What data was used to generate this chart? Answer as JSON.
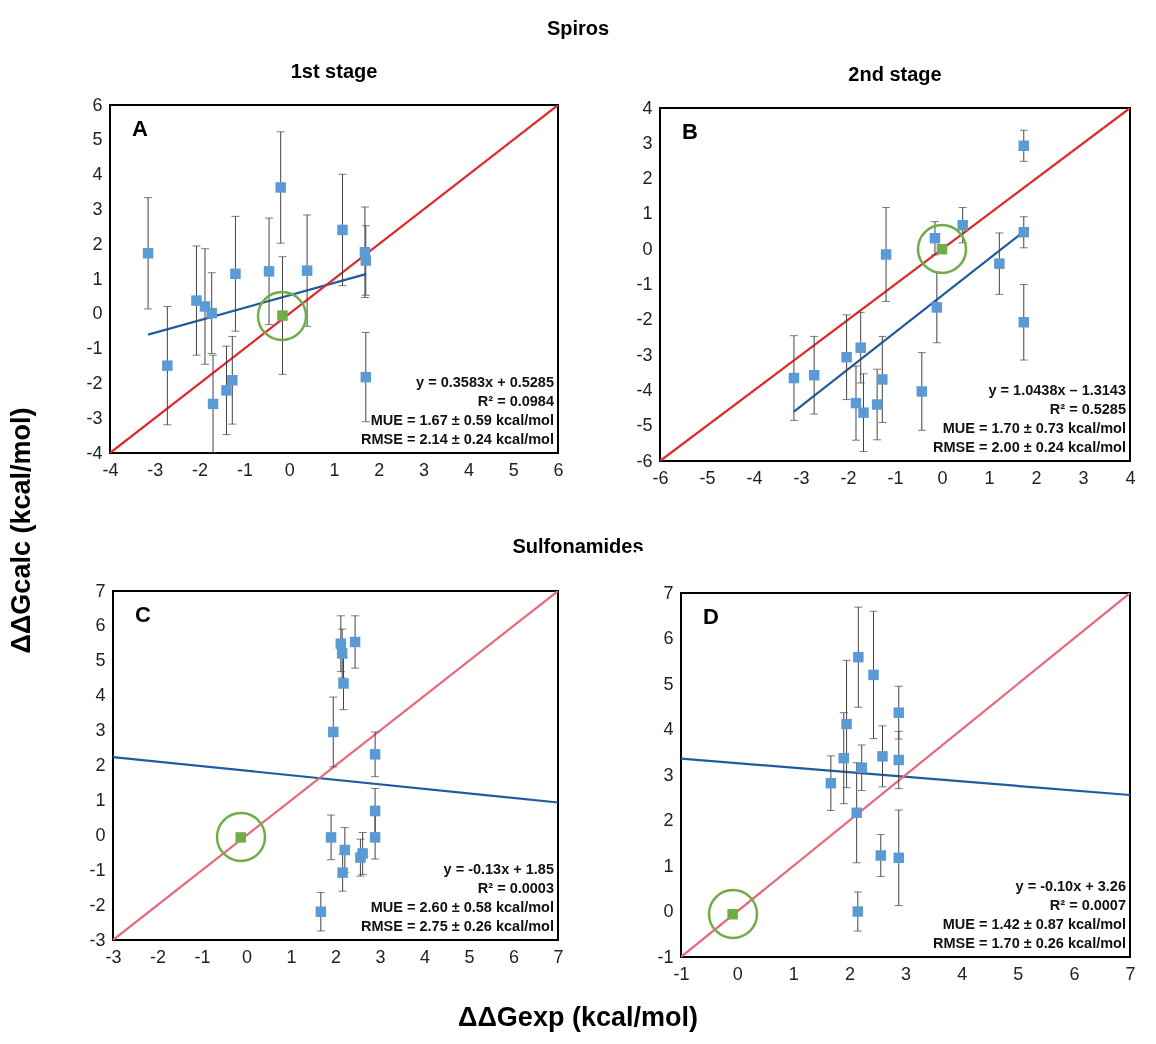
{
  "chart_data": [
    {
      "type": "scatter",
      "title": "Spiros",
      "subtitle": "1st stage",
      "ylabel": "ΔΔGcalc (kcal/mol)",
      "xlim": [
        -4,
        6
      ],
      "ylim": [
        -4,
        6
      ],
      "xticks": [
        -4,
        -3,
        -2,
        -1,
        0,
        1,
        2,
        3,
        4,
        5,
        6
      ],
      "yticks": [
        -4,
        -3,
        -2,
        -1,
        0,
        1,
        2,
        3,
        4,
        5,
        6
      ],
      "annotations": [
        "A",
        "y = 0.3583x + 0.5285",
        "R² = 0.0984",
        "MUE = 1.67 ± 0.59 kcal/mol",
        "RMSE = 2.14 ± 0.24 kcal/mol"
      ],
      "series": [
        {
          "type": "scatter",
          "marker": "square",
          "color": "#5b9bd5",
          "x": [
            -3.15,
            -2.72,
            -2.07,
            -1.88,
            -1.73,
            -1.7,
            -1.4,
            -1.27,
            -1.2,
            -0.45,
            -0.19,
            0.4,
            1.19,
            1.69,
            1.71,
            1.71
          ],
          "values": [
            1.74,
            -1.49,
            0.38,
            0.21,
            0.02,
            -2.59,
            -2.2,
            -1.91,
            1.15,
            1.22,
            3.63,
            1.24,
            2.41,
            1.77,
            1.53,
            -1.82
          ],
          "errors": [
            1.6,
            1.7,
            1.57,
            1.66,
            1.16,
            1.4,
            1.27,
            1.26,
            1.65,
            1.53,
            1.6,
            1.6,
            1.6,
            1.3,
            1.0,
            1.28
          ]
        },
        {
          "type": "scatter",
          "marker": "square",
          "color": "#70ad47",
          "x": [
            -0.15
          ],
          "values": [
            -0.05
          ],
          "errors": [
            1.69
          ]
        },
        {
          "type": "line",
          "color": "#1f5c9e",
          "x": [
            -3.15,
            1.71
          ],
          "values": [
            -0.6,
            1.14
          ]
        },
        {
          "type": "line",
          "color": "#e0262a",
          "x": [
            -4,
            6
          ],
          "values": [
            -4,
            6
          ]
        }
      ]
    },
    {
      "type": "scatter",
      "subtitle": "2nd stage",
      "xlim": [
        -6,
        4
      ],
      "ylim": [
        -6,
        4
      ],
      "xticks": [
        -6,
        -5,
        -4,
        -3,
        -2,
        -1,
        0,
        1,
        2,
        3,
        4
      ],
      "yticks": [
        -6,
        -5,
        -4,
        -3,
        -2,
        -1,
        0,
        1,
        2,
        3,
        4
      ],
      "annotations": [
        "B",
        "y = 1.0438x – 1.3143",
        "R² = 0.5285",
        "MUE = 1.70 ± 0.73 kcal/mol",
        "RMSE = 2.00 ± 0.24 kcal/mol"
      ],
      "series": [
        {
          "type": "scatter",
          "marker": "square",
          "color": "#5b9bd5",
          "x": [
            -3.15,
            -2.72,
            -2.03,
            -1.73,
            -1.83,
            -1.67,
            -1.38,
            -1.27,
            -1.19,
            -0.43,
            -0.15,
            -0.11,
            0.44,
            1.22,
            1.74,
            1.74,
            1.74
          ],
          "values": [
            -3.65,
            -3.57,
            -3.06,
            -2.79,
            -4.36,
            -4.63,
            -4.4,
            -3.69,
            -0.15,
            -4.03,
            0.31,
            -1.65,
            0.68,
            -0.41,
            2.93,
            0.48,
            -2.07
          ],
          "errors": [
            1.2,
            1.1,
            1.2,
            1.0,
            1.05,
            1.1,
            1.0,
            1.22,
            1.33,
            1.1,
            0.47,
            1.0,
            0.5,
            0.87,
            0.44,
            0.44,
            1.07
          ]
        },
        {
          "type": "scatter",
          "marker": "square",
          "color": "#70ad47",
          "x": [
            0
          ],
          "values": [
            0
          ]
        },
        {
          "type": "line",
          "color": "#1f5c9e",
          "x": [
            -3.15,
            1.74
          ],
          "values": [
            -4.6,
            0.5
          ]
        },
        {
          "type": "line",
          "color": "#e0262a",
          "x": [
            -6,
            4
          ],
          "values": [
            -6,
            4
          ]
        }
      ]
    },
    {
      "type": "scatter",
      "title": "Sulfonamides",
      "xlabel": "ΔΔGexp (kcal/mol)",
      "xlim": [
        -3,
        7
      ],
      "ylim": [
        -3,
        7
      ],
      "xticks": [
        -3,
        -2,
        -1,
        0,
        1,
        2,
        3,
        4,
        5,
        6,
        7
      ],
      "yticks": [
        -3,
        -2,
        -1,
        0,
        1,
        2,
        3,
        4,
        5,
        6,
        7
      ],
      "annotations": [
        "C",
        "y = -0.13x + 1.85",
        "R² = 0.0003",
        "MUE = 2.60 ± 0.58 kcal/mol",
        "RMSE = 2.75 ± 0.26 kcal/mol"
      ],
      "series": [
        {
          "type": "scatter",
          "marker": "square",
          "color": "#5b9bd5",
          "x": [
            1.67,
            1.9,
            1.95,
            2.12,
            2.15,
            2.18,
            2.16,
            2.21,
            2.44,
            2.56,
            2.61,
            2.89,
            2.89,
            2.89
          ],
          "values": [
            -2.19,
            -0.06,
            2.96,
            5.49,
            5.21,
            4.35,
            -1.07,
            -0.42,
            5.54,
            -0.64,
            -0.52,
            2.32,
            0.7,
            -0.06
          ],
          "errors": [
            0.55,
            0.64,
            1.0,
            0.8,
            0.7,
            0.75,
            0.53,
            0.64,
            0.75,
            0.53,
            0.6,
            0.64,
            0.64,
            0.62
          ]
        },
        {
          "type": "scatter",
          "marker": "square",
          "color": "#70ad47",
          "x": [
            -0.13
          ],
          "values": [
            -0.06
          ]
        },
        {
          "type": "line",
          "color": "#1f5c9e",
          "x": [
            -3,
            7
          ],
          "values": [
            2.24,
            0.94
          ]
        },
        {
          "type": "line",
          "color": "#e8687a",
          "x": [
            -3,
            7
          ],
          "values": [
            -3,
            7
          ]
        }
      ]
    },
    {
      "type": "scatter",
      "xlim": [
        -1,
        7
      ],
      "ylim": [
        -1,
        7
      ],
      "xticks": [
        -1,
        0,
        1,
        2,
        3,
        4,
        5,
        6,
        7
      ],
      "yticks": [
        -1,
        0,
        1,
        2,
        3,
        4,
        5,
        6,
        7
      ],
      "annotations": [
        "D",
        "y = -0.10x + 3.26",
        "R² = 0.0007",
        "MUE = 1.42 ± 0.87 kcal/mol",
        "RMSE = 1.70 ± 0.26 kcal/mol"
      ],
      "series": [
        {
          "type": "scatter",
          "marker": "square",
          "color": "#5b9bd5",
          "x": [
            1.67,
            1.9,
            1.95,
            2.16,
            2.13,
            2.15,
            2.22,
            2.43,
            2.59,
            2.56,
            2.88,
            2.88,
            2.88
          ],
          "values": [
            2.82,
            3.37,
            4.12,
            5.59,
            2.17,
            0.0,
            3.16,
            5.2,
            3.41,
            1.23,
            4.37,
            3.33,
            1.18
          ],
          "errors": [
            0.6,
            1.0,
            1.4,
            1.1,
            1.1,
            0.43,
            0.5,
            1.4,
            0.67,
            0.46,
            0.58,
            0.63,
            1.05
          ]
        },
        {
          "type": "scatter",
          "marker": "square",
          "color": "#70ad47",
          "x": [
            -0.08
          ],
          "values": [
            -0.06
          ]
        },
        {
          "type": "line",
          "color": "#1f5c9e",
          "x": [
            -1,
            7
          ],
          "values": [
            3.36,
            2.56
          ]
        },
        {
          "type": "line",
          "color": "#e8687a",
          "x": [
            -1,
            7
          ],
          "values": [
            -1,
            7
          ]
        }
      ]
    }
  ]
}
